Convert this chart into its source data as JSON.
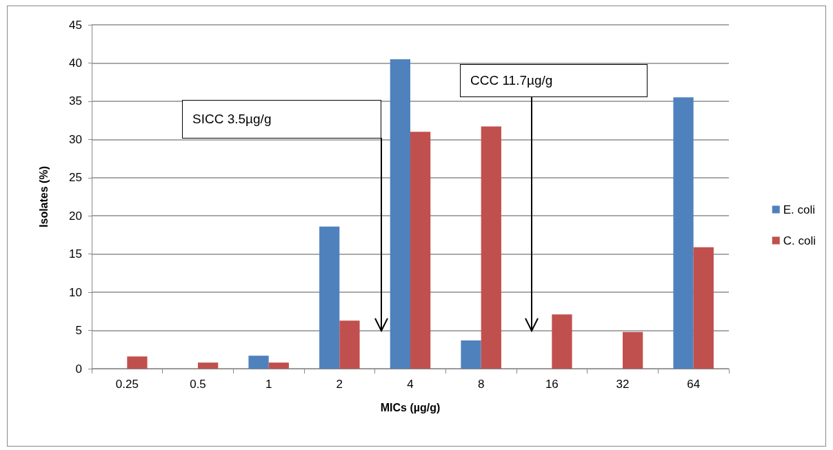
{
  "chart_data": {
    "type": "bar",
    "xlabel": "MICs (µg/g)",
    "ylabel": "Isolates (%)",
    "categories": [
      "0.25",
      "0.5",
      "1",
      "2",
      "4",
      "8",
      "16",
      "32",
      "64"
    ],
    "series": [
      {
        "name": "E. coli",
        "color": "#4f81bd",
        "values": [
          0,
          0,
          1.7,
          18.6,
          40.5,
          3.7,
          0,
          0,
          35.5
        ]
      },
      {
        "name": "C. coli",
        "color": "#c0504d",
        "values": [
          1.6,
          0.8,
          0.8,
          6.3,
          31,
          31.7,
          7.1,
          4.8,
          15.9
        ]
      }
    ],
    "ylim": [
      0,
      45
    ],
    "yticks": [
      0,
      5,
      10,
      15,
      20,
      25,
      30,
      35,
      40,
      45
    ],
    "grid": "y",
    "legend": "right",
    "annotations": [
      "SICC 3.5µg/g",
      "CCC 11.7µg/g"
    ]
  }
}
